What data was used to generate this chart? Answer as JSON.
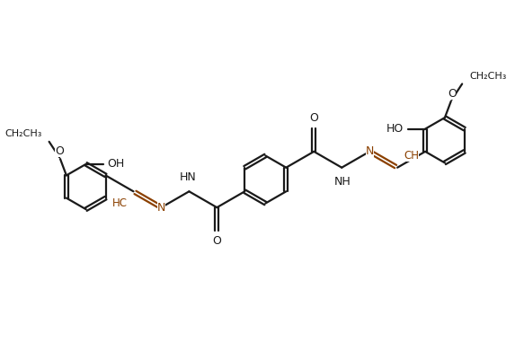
{
  "line_color": "#1a1a1a",
  "highlight_color": "#8B4000",
  "bg_color": "#ffffff",
  "lw": 1.6,
  "fs": 9,
  "dbo": 0.042,
  "figsize": [
    5.73,
    4.0
  ],
  "dpi": 100,
  "xlim": [
    -1,
    11
  ],
  "ylim": [
    0.5,
    7.5
  ]
}
